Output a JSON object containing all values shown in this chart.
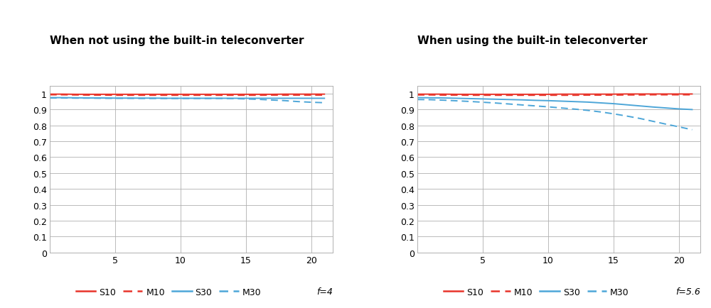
{
  "title_left": "When not using the built-in teleconverter",
  "title_right": "When using the built-in teleconverter",
  "f_left": "f=4",
  "f_right": "f=5.6",
  "bg_color": "#ffffff",
  "grid_color": "#b0b0b0",
  "red_color": "#e8342a",
  "blue_color": "#4da6d8",
  "xlim": [
    0,
    21.63
  ],
  "ylim": [
    0,
    1.05
  ],
  "yticks": [
    0,
    0.1,
    0.2,
    0.3,
    0.4,
    0.5,
    0.6,
    0.7,
    0.8,
    0.9,
    1.0
  ],
  "xticks": [
    5,
    10,
    15,
    20
  ],
  "chart1": {
    "S10": [
      0.997,
      0.997,
      0.996,
      0.996,
      0.996,
      0.996,
      0.996,
      0.996,
      0.996,
      0.996,
      0.996,
      0.996,
      0.996,
      0.996,
      0.996,
      0.996,
      0.996,
      0.996,
      0.997,
      0.997,
      0.997,
      0.997
    ],
    "M10": [
      0.993,
      0.993,
      0.992,
      0.991,
      0.991,
      0.99,
      0.99,
      0.99,
      0.99,
      0.99,
      0.99,
      0.99,
      0.99,
      0.99,
      0.99,
      0.99,
      0.99,
      0.991,
      0.991,
      0.991,
      0.991,
      0.991
    ],
    "S30": [
      0.975,
      0.975,
      0.974,
      0.973,
      0.973,
      0.972,
      0.972,
      0.972,
      0.972,
      0.971,
      0.971,
      0.971,
      0.971,
      0.971,
      0.971,
      0.971,
      0.971,
      0.971,
      0.971,
      0.971,
      0.971,
      0.971
    ],
    "M30": [
      0.973,
      0.973,
      0.972,
      0.972,
      0.971,
      0.971,
      0.971,
      0.97,
      0.97,
      0.97,
      0.97,
      0.97,
      0.97,
      0.97,
      0.969,
      0.967,
      0.964,
      0.96,
      0.956,
      0.95,
      0.946,
      0.943
    ]
  },
  "chart2": {
    "S10": [
      0.997,
      0.997,
      0.997,
      0.996,
      0.996,
      0.996,
      0.996,
      0.996,
      0.996,
      0.996,
      0.996,
      0.997,
      0.997,
      0.997,
      0.997,
      0.997,
      0.998,
      0.998,
      0.998,
      0.998,
      0.998,
      0.998
    ],
    "M10": [
      0.992,
      0.992,
      0.991,
      0.991,
      0.99,
      0.99,
      0.99,
      0.99,
      0.99,
      0.99,
      0.99,
      0.99,
      0.99,
      0.991,
      0.991,
      0.991,
      0.992,
      0.992,
      0.993,
      0.993,
      0.993,
      0.993
    ],
    "S30": [
      0.975,
      0.974,
      0.973,
      0.971,
      0.969,
      0.967,
      0.965,
      0.963,
      0.961,
      0.958,
      0.956,
      0.953,
      0.95,
      0.947,
      0.942,
      0.937,
      0.93,
      0.923,
      0.916,
      0.91,
      0.904,
      0.9
    ],
    "M30": [
      0.963,
      0.962,
      0.959,
      0.955,
      0.951,
      0.946,
      0.941,
      0.935,
      0.929,
      0.923,
      0.917,
      0.91,
      0.903,
      0.895,
      0.885,
      0.873,
      0.859,
      0.844,
      0.826,
      0.808,
      0.791,
      0.773
    ]
  },
  "x_values": [
    0,
    1,
    2,
    3,
    4,
    5,
    6,
    7,
    8,
    9,
    10,
    11,
    12,
    13,
    14,
    15,
    16,
    17,
    18,
    19,
    20,
    21
  ]
}
